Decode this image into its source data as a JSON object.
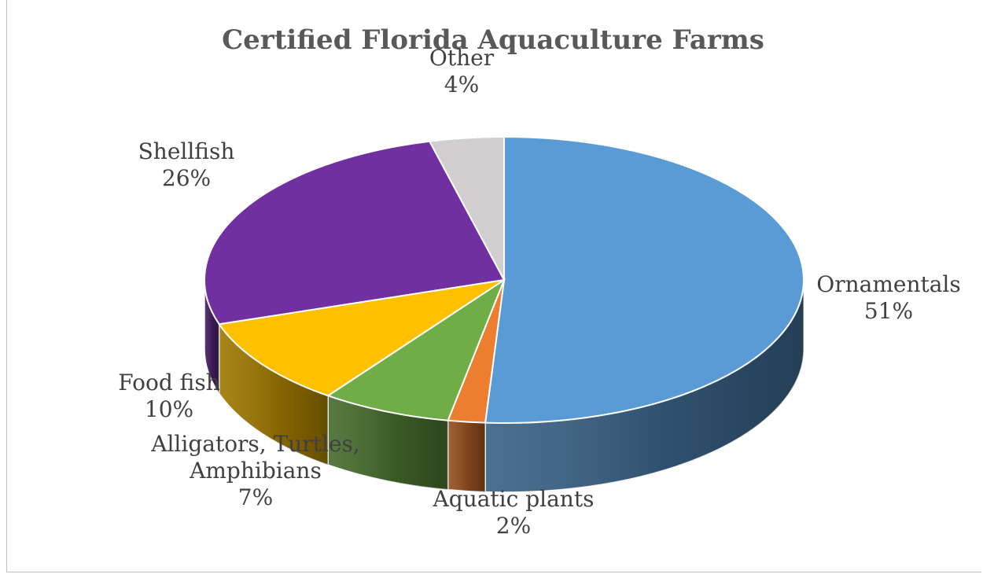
{
  "chart_data": {
    "type": "pie",
    "title": "Certified Florida Aquaculture Farms",
    "style": "3d",
    "slices": [
      {
        "label": "Ornamentals",
        "percent_label": "51%",
        "value": 51,
        "color": "#5b9bd5"
      },
      {
        "label": "Aquatic plants",
        "percent_label": "2%",
        "value": 2,
        "color": "#ed7d31"
      },
      {
        "label": "Alligators, Turtles, Amphibians",
        "percent_label": "7%",
        "value": 7,
        "color": "#70ad47"
      },
      {
        "label": "Food fish",
        "percent_label": "10%",
        "value": 10,
        "color": "#ffc000"
      },
      {
        "label": "Shellfish",
        "percent_label": "26%",
        "value": 26,
        "color": "#7030a0"
      },
      {
        "label": "Other",
        "percent_label": "4%",
        "value": 4,
        "color": "#d0cece"
      }
    ]
  }
}
